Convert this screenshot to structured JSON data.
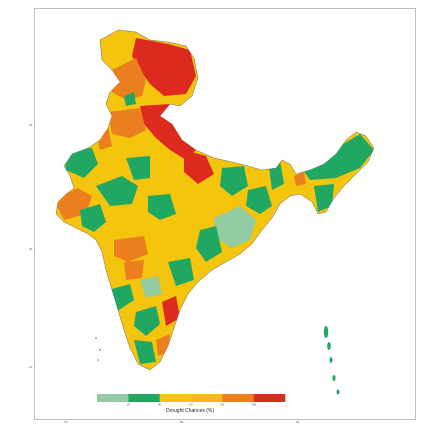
{
  "legend": {
    "title": "Drought Chances (%)",
    "colors": [
      "#93cca3",
      "#20a862",
      "#f5c40c",
      "#f7b913",
      "#ec7f1d",
      "#dd2a1e"
    ],
    "tick_labels": [
      "20",
      "40",
      "60",
      "80",
      "100"
    ]
  },
  "axes": {
    "x_ticks": [
      "70",
      "80",
      "90"
    ],
    "y_ticks": [
      "30",
      "20",
      "10"
    ]
  },
  "palette": {
    "very_low": "#93cca3",
    "low": "#20a862",
    "medium": "#f5c40c",
    "high": "#ec7f1d",
    "very_high": "#dd2a1e",
    "border": "#6b6b6b"
  }
}
